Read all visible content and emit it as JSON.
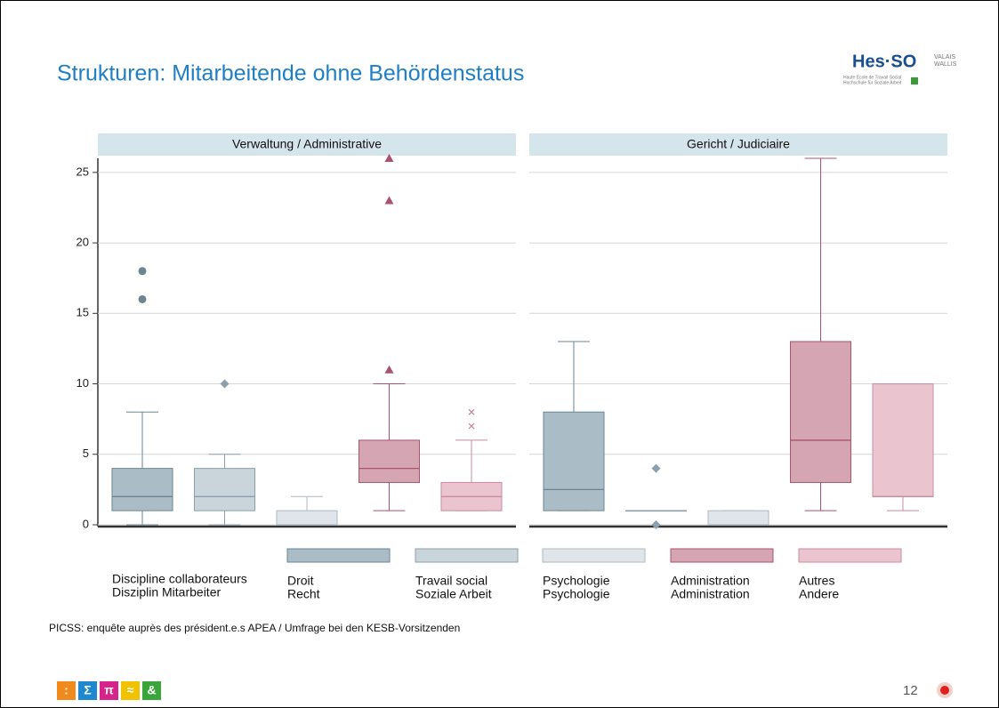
{
  "header": {
    "title": "Strukturen: Mitarbeitende ohne Behördenstatus",
    "logo": "Hes·SO",
    "logo_region": [
      "VALAIS",
      "WALLIS"
    ],
    "logo_lines": [
      "Haute Ecole de Travail Social",
      "Hochschule für Soziale Arbeit"
    ]
  },
  "chart_data": {
    "type": "box",
    "ylim": [
      0,
      26
    ],
    "yticks": [
      0,
      5,
      10,
      15,
      20,
      25
    ],
    "grid": true,
    "legend_title": [
      "Discipline collaborateurs",
      "Disziplin Mitarbeiter"
    ],
    "series": [
      {
        "name": [
          "Droit",
          "Recht"
        ],
        "color": "#aabdc7",
        "stroke": "#6d8593",
        "marker": "circle"
      },
      {
        "name": [
          "Travail social",
          "Soziale Arbeit"
        ],
        "color": "#c9d4db",
        "stroke": "#8d9fab",
        "marker": "diamond"
      },
      {
        "name": [
          "Psychologie",
          "Psychologie"
        ],
        "color": "#dfe5ea",
        "stroke": "#aeb9c1",
        "marker": "square"
      },
      {
        "name": [
          "Administration",
          "Administration"
        ],
        "color": "#d5a5b4",
        "stroke": "#a8546e",
        "marker": "triangle"
      },
      {
        "name": [
          "Autres",
          "Andere"
        ],
        "color": "#eac5cf",
        "stroke": "#c98ba0",
        "marker": "x"
      }
    ],
    "panels": [
      {
        "title": "Verwaltung / Administrative",
        "boxes": [
          {
            "low": 0,
            "q1": 1,
            "median": 2,
            "q3": 4,
            "high": 8,
            "outliers": [
              16,
              18
            ]
          },
          {
            "low": 0,
            "q1": 1,
            "median": 2,
            "q3": 4,
            "high": 5,
            "outliers": [
              10
            ]
          },
          {
            "low": 0,
            "q1": 0,
            "median": 0,
            "q3": 1,
            "high": 2,
            "outliers": []
          },
          {
            "low": 1,
            "q1": 3,
            "median": 4,
            "q3": 6,
            "high": 10,
            "outliers": [
              11,
              23,
              26
            ]
          },
          {
            "low": 1,
            "q1": 1,
            "median": 2,
            "q3": 3,
            "high": 6,
            "outliers": [
              7,
              8
            ]
          }
        ]
      },
      {
        "title": "Gericht / Judiciaire",
        "boxes": [
          {
            "low": 1,
            "q1": 1,
            "median": 2.5,
            "q3": 8,
            "high": 13,
            "outliers": []
          },
          {
            "low": 1,
            "q1": 1,
            "median": 1,
            "q3": 1,
            "high": 1,
            "outliers": [
              0,
              4
            ]
          },
          {
            "low": 0,
            "q1": 0,
            "median": 0,
            "q3": 1,
            "high": 1,
            "outliers": []
          },
          {
            "low": 1,
            "q1": 3,
            "median": 6,
            "q3": 13,
            "high": 26,
            "outliers": []
          },
          {
            "low": 1,
            "q1": 2,
            "median": 2,
            "q3": 10,
            "high": 10,
            "outliers": []
          }
        ]
      }
    ]
  },
  "source": "PICSS: enquête auprès des président.e.s APEA / Umfrage bei den KESB-Vorsitzenden",
  "footer": {
    "icons": [
      ":",
      "Σ",
      "π",
      "≈",
      "&"
    ],
    "page": "12"
  }
}
